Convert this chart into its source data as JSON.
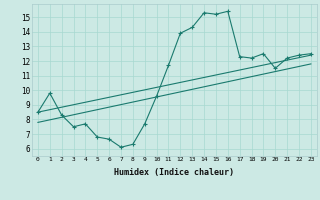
{
  "title": "",
  "xlabel": "Humidex (Indice chaleur)",
  "ylabel": "",
  "bg_color": "#cce9e4",
  "line_color": "#1a7a6e",
  "xlim": [
    -0.5,
    23.5
  ],
  "ylim": [
    5.5,
    15.9
  ],
  "yticks": [
    6,
    7,
    8,
    9,
    10,
    11,
    12,
    13,
    14,
    15
  ],
  "xticks": [
    0,
    1,
    2,
    3,
    4,
    5,
    6,
    7,
    8,
    9,
    10,
    11,
    12,
    13,
    14,
    15,
    16,
    17,
    18,
    19,
    20,
    21,
    22,
    23
  ],
  "main_x": [
    0,
    1,
    2,
    3,
    4,
    5,
    6,
    7,
    8,
    9,
    10,
    11,
    12,
    13,
    14,
    15,
    16,
    17,
    18,
    19,
    20,
    21,
    22,
    23
  ],
  "main_y": [
    8.5,
    9.8,
    8.3,
    7.5,
    7.7,
    6.8,
    6.65,
    6.1,
    6.3,
    7.7,
    9.6,
    11.7,
    13.9,
    14.3,
    15.3,
    15.2,
    15.4,
    12.3,
    12.2,
    12.5,
    11.5,
    12.2,
    12.4,
    12.5
  ],
  "line2_x": [
    0,
    23
  ],
  "line2_y": [
    8.5,
    12.4
  ],
  "line3_x": [
    0,
    23
  ],
  "line3_y": [
    7.8,
    11.8
  ]
}
